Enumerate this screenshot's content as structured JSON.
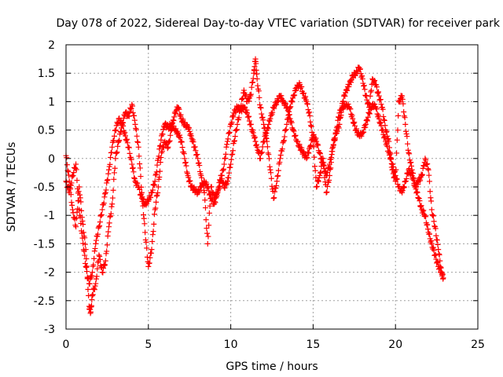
{
  "chart_data": {
    "type": "scatter",
    "title": "Day 078 of 2022, Sidereal Day-to-day VTEC variation (SDTVAR) for receiver park",
    "xlabel": "GPS time / hours",
    "ylabel": "SDTVAR / TECUs",
    "xlim": [
      0,
      25
    ],
    "ylim": [
      -3,
      2
    ],
    "xticks": [
      0,
      5,
      10,
      15,
      20,
      25
    ],
    "yticks": [
      -3,
      -2.5,
      -2,
      -1.5,
      -1,
      -0.5,
      0,
      0.5,
      1,
      1.5,
      2
    ],
    "grid": true,
    "marker": "+",
    "legend": "none",
    "series": [
      {
        "name": "SDTVAR",
        "color": "#ff0000",
        "x": [
          0.0,
          0.2,
          0.4,
          0.6,
          0.8,
          1.0,
          1.2,
          1.4,
          1.5,
          1.6,
          1.8,
          2.0,
          2.2,
          2.4,
          2.6,
          2.8,
          3.0,
          3.2,
          3.4,
          3.6,
          3.8,
          4.0,
          4.2,
          4.4,
          4.6,
          4.8,
          5.0,
          5.2,
          5.4,
          5.6,
          5.8,
          6.0,
          6.2,
          6.4,
          6.6,
          6.8,
          7.0,
          7.2,
          7.4,
          7.6,
          7.8,
          8.0,
          8.2,
          8.4,
          8.6,
          8.8,
          9.0,
          9.2,
          9.4,
          9.6,
          9.8,
          10.0,
          10.2,
          10.4,
          10.6,
          10.8,
          11.0,
          11.2,
          11.4,
          11.5,
          11.6,
          11.8,
          12.0,
          12.2,
          12.4,
          12.6,
          12.8,
          13.0,
          13.2,
          13.4,
          13.6,
          13.8,
          14.0,
          14.2,
          14.4,
          14.6,
          14.8,
          15.0,
          15.2,
          15.4,
          15.6,
          15.8,
          16.0,
          16.2,
          16.4,
          16.6,
          16.8,
          17.0,
          17.2,
          17.4,
          17.6,
          17.8,
          18.0,
          18.2,
          18.4,
          18.6,
          18.8,
          19.0,
          19.2,
          19.4,
          19.6,
          19.8,
          20.0,
          20.2,
          20.4,
          20.6,
          20.8,
          21.0,
          21.2,
          21.4,
          21.6,
          21.8,
          22.0,
          22.2,
          22.4,
          22.6,
          22.8,
          22.9
        ],
        "y": [
          0.05,
          -0.4,
          -0.9,
          -1.2,
          -0.5,
          -1.1,
          -1.6,
          -2.6,
          -2.7,
          -2.4,
          -2.2,
          -1.7,
          -2.0,
          -1.8,
          -1.2,
          -0.8,
          0.0,
          0.3,
          0.6,
          0.8,
          0.75,
          0.95,
          0.6,
          0.2,
          -0.6,
          -1.3,
          -1.9,
          -1.6,
          -0.9,
          -0.5,
          0.1,
          0.3,
          0.2,
          0.5,
          0.8,
          0.9,
          0.7,
          0.6,
          0.55,
          0.4,
          0.2,
          0.0,
          -0.3,
          -0.6,
          -1.5,
          -0.5,
          -0.7,
          -0.6,
          -0.3,
          -0.5,
          -0.4,
          -0.1,
          0.3,
          0.6,
          0.9,
          1.2,
          1.0,
          1.1,
          1.5,
          1.75,
          1.4,
          0.9,
          0.6,
          0.3,
          -0.2,
          -0.7,
          -0.4,
          0.0,
          0.3,
          0.6,
          0.9,
          1.1,
          1.25,
          1.3,
          1.15,
          1.0,
          0.75,
          0.3,
          -0.5,
          -0.3,
          0.0,
          -0.6,
          -0.3,
          0.2,
          0.45,
          0.6,
          1.0,
          1.2,
          1.3,
          1.45,
          1.5,
          1.6,
          1.4,
          1.1,
          0.9,
          1.4,
          1.3,
          1.1,
          0.9,
          0.5,
          0.3,
          -0.2,
          -0.4,
          1.0,
          1.1,
          0.6,
          0.1,
          -0.2,
          -0.5,
          -0.4,
          -0.3,
          0.0,
          -0.2,
          -0.9,
          -1.2,
          -1.6,
          -2.0,
          -2.1
        ]
      },
      {
        "name": "SDTVAR",
        "color": "#ff0000",
        "x": [
          0.0,
          0.2,
          0.4,
          0.6,
          0.8,
          1.0,
          1.2,
          1.4,
          1.6,
          1.8,
          2.0,
          2.2,
          2.4,
          2.6,
          2.8,
          3.0,
          3.2,
          3.4,
          3.6,
          3.8,
          4.0,
          4.2,
          4.4,
          4.6,
          4.8,
          5.0,
          5.2,
          5.4,
          5.6,
          5.8,
          6.0,
          6.2,
          6.4,
          6.6,
          6.8,
          7.0,
          7.2,
          7.4,
          7.6,
          7.8,
          8.0,
          8.2,
          8.4,
          8.6,
          8.8,
          9.0,
          9.2,
          9.4,
          9.6,
          9.8,
          10.0,
          10.2,
          10.4,
          10.6,
          10.8,
          11.0,
          11.2,
          11.4,
          11.6,
          11.8,
          12.0,
          12.2,
          12.4,
          12.6,
          12.8,
          13.0,
          13.2,
          13.4,
          13.6,
          13.8,
          14.0,
          14.2,
          14.4,
          14.6,
          14.8,
          15.0,
          15.2,
          15.4,
          15.6,
          15.8,
          16.0,
          16.2,
          16.4,
          16.6,
          16.8,
          17.0,
          17.2,
          17.4,
          17.6,
          17.8,
          18.0,
          18.2,
          18.4,
          18.6,
          18.8,
          19.0,
          19.2,
          19.4,
          19.6,
          19.8,
          20.0,
          20.2,
          20.4,
          20.6,
          20.8,
          21.0,
          21.2,
          21.4,
          21.6,
          21.8,
          22.0,
          22.2,
          22.4,
          22.6,
          22.8
        ],
        "y": [
          -0.4,
          -0.6,
          -0.3,
          -0.1,
          -0.9,
          -1.4,
          -1.9,
          -2.2,
          -2.0,
          -1.5,
          -1.2,
          -0.9,
          -0.6,
          -0.2,
          0.2,
          0.5,
          0.7,
          0.6,
          0.4,
          0.2,
          -0.1,
          -0.4,
          -0.5,
          -0.7,
          -0.8,
          -0.75,
          -0.6,
          -0.4,
          0.0,
          0.4,
          0.6,
          0.55,
          0.6,
          0.5,
          0.45,
          0.3,
          0.0,
          -0.3,
          -0.5,
          -0.55,
          -0.6,
          -0.5,
          -0.4,
          -0.5,
          -0.7,
          -0.8,
          -0.6,
          -0.4,
          -0.1,
          0.3,
          0.6,
          0.8,
          0.9,
          0.85,
          0.9,
          0.8,
          0.6,
          0.4,
          0.2,
          0.0,
          0.3,
          0.5,
          0.7,
          0.9,
          1.0,
          1.1,
          1.0,
          0.9,
          0.7,
          0.5,
          0.3,
          0.2,
          0.1,
          0.0,
          0.2,
          0.4,
          0.3,
          0.1,
          -0.1,
          -0.3,
          -0.1,
          0.2,
          0.5,
          0.8,
          0.9,
          0.95,
          0.9,
          0.7,
          0.5,
          0.4,
          0.45,
          0.6,
          0.8,
          0.95,
          0.9,
          0.7,
          0.5,
          0.3,
          0.1,
          -0.1,
          -0.3,
          -0.5,
          -0.6,
          -0.4,
          -0.2,
          -0.3,
          -0.5,
          -0.7,
          -0.9,
          -1.0,
          -1.3,
          -1.5,
          -1.7,
          -1.9,
          -2.0
        ]
      }
    ]
  }
}
